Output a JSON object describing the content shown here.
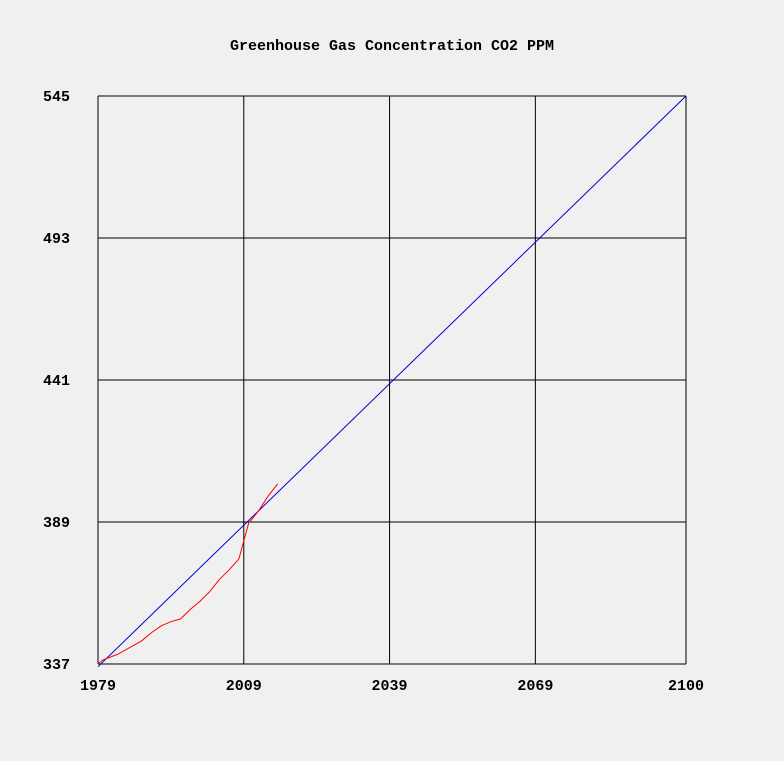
{
  "chart_data": {
    "type": "line",
    "title": "Greenhouse Gas Concentration CO2 PPM",
    "xlabel": "",
    "ylabel": "",
    "xlim": [
      1979,
      2100
    ],
    "ylim": [
      337,
      545
    ],
    "x_ticks": [
      1979,
      2009,
      2039,
      2069,
      2100
    ],
    "y_ticks": [
      337,
      389,
      441,
      493,
      545
    ],
    "grid": true,
    "legend": "none",
    "series": [
      {
        "color": "#0000cc",
        "x": [
          1979,
          2100
        ],
        "y": [
          336,
          545
        ]
      },
      {
        "color": "#ff0000",
        "x": [
          1979,
          1980,
          1983,
          1986,
          1988,
          1990,
          1992,
          1994,
          1996,
          1998,
          2000,
          2002,
          2004,
          2006,
          2008,
          2010,
          2012,
          2014,
          2016
        ],
        "y": [
          337,
          338.5,
          340.5,
          343.5,
          345.5,
          348.5,
          351,
          352.5,
          353.5,
          357,
          360,
          363.5,
          368,
          371.5,
          375.5,
          388.5,
          393,
          398.5,
          403
        ]
      }
    ]
  }
}
